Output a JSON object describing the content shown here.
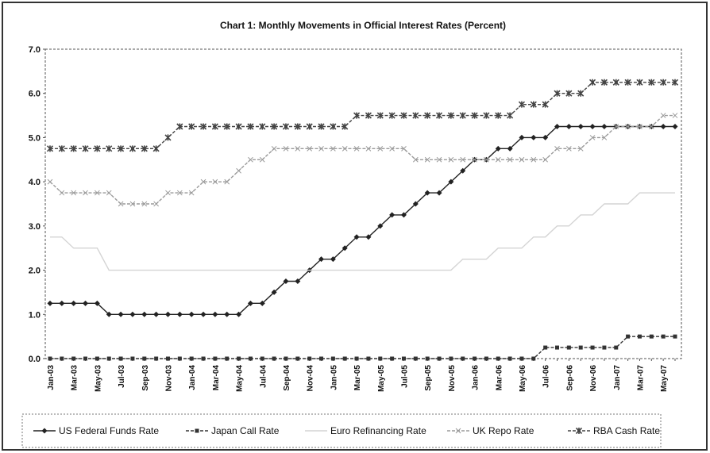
{
  "chart_data": {
    "type": "line",
    "title": "Chart 1: Monthly Movements in Official Interest Rates (Percent)",
    "categories": [
      "Jan-03",
      null,
      "Mar-03",
      null,
      "May-03",
      null,
      "Jul-03",
      null,
      "Sep-03",
      null,
      "Nov-03",
      null,
      "Jan-04",
      null,
      "Mar-04",
      null,
      "May-04",
      null,
      "Jul-04",
      null,
      "Sep-04",
      null,
      "Nov-04",
      null,
      "Jan-05",
      null,
      "Mar-05",
      null,
      "May-05",
      null,
      "Jul-05",
      null,
      "Sep-05",
      null,
      "Nov-05",
      null,
      "Jan-06",
      null,
      "Mar-06",
      null,
      "May-06",
      null,
      "Jul-06",
      null,
      "Sep-06",
      null,
      "Nov-06",
      null,
      "Jan-07",
      null,
      "Mar-07",
      null,
      "May-07",
      null
    ],
    "ylim": [
      0,
      7
    ],
    "yticks": [
      {
        "value": 0,
        "label": "0.0"
      },
      {
        "value": 1,
        "label": "1.0"
      },
      {
        "value": 2,
        "label": "2.0"
      },
      {
        "value": 3,
        "label": "3.0"
      },
      {
        "value": 4,
        "label": "4.0"
      },
      {
        "value": 5,
        "label": "5.0"
      },
      {
        "value": 6,
        "label": "6.0"
      },
      {
        "value": 7,
        "label": "7.0"
      }
    ],
    "series": [
      {
        "name": "US Federal Funds Rate",
        "color": "#222222",
        "dash": false,
        "marker": "diamond",
        "values": [
          1.25,
          1.25,
          1.25,
          1.25,
          1.25,
          1,
          1,
          1,
          1,
          1,
          1,
          1,
          1,
          1,
          1,
          1,
          1,
          1.25,
          1.25,
          1.5,
          1.75,
          1.75,
          2,
          2.25,
          2.25,
          2.5,
          2.75,
          2.75,
          3,
          3.25,
          3.25,
          3.5,
          3.75,
          3.75,
          4,
          4.25,
          4.5,
          4.5,
          4.75,
          4.75,
          5,
          5,
          5,
          5.25,
          5.25,
          5.25,
          5.25,
          5.25,
          5.25,
          5.25,
          5.25,
          5.25,
          5.25,
          5.25
        ]
      },
      {
        "name": "Japan Call Rate",
        "color": "#333333",
        "dash": true,
        "marker": "square",
        "values": [
          0,
          0,
          0,
          0,
          0,
          0,
          0,
          0,
          0,
          0,
          0,
          0,
          0,
          0,
          0,
          0,
          0,
          0,
          0,
          0,
          0,
          0,
          0,
          0,
          0,
          0,
          0,
          0,
          0,
          0,
          0,
          0,
          0,
          0,
          0,
          0,
          0,
          0,
          0,
          0,
          0,
          0,
          0.25,
          0.25,
          0.25,
          0.25,
          0.25,
          0.25,
          0.25,
          0.5,
          0.5,
          0.5,
          0.5,
          0.5
        ]
      },
      {
        "name": "Euro Refinancing Rate",
        "color": "#d4d4d4",
        "dash": false,
        "marker": "none",
        "values": [
          2.75,
          2.75,
          2.5,
          2.5,
          2.5,
          2,
          2,
          2,
          2,
          2,
          2,
          2,
          2,
          2,
          2,
          2,
          2,
          2,
          2,
          2,
          2,
          2,
          2,
          2,
          2,
          2,
          2,
          2,
          2,
          2,
          2,
          2,
          2,
          2,
          2,
          2.25,
          2.25,
          2.25,
          2.5,
          2.5,
          2.5,
          2.75,
          2.75,
          3,
          3,
          3.25,
          3.25,
          3.5,
          3.5,
          3.5,
          3.75,
          3.75,
          3.75,
          3.75
        ]
      },
      {
        "name": "UK Repo Rate",
        "color": "#9a9a9a",
        "dash": true,
        "marker": "cross",
        "values": [
          4,
          3.75,
          3.75,
          3.75,
          3.75,
          3.75,
          3.5,
          3.5,
          3.5,
          3.5,
          3.75,
          3.75,
          3.75,
          4,
          4,
          4,
          4.25,
          4.5,
          4.5,
          4.75,
          4.75,
          4.75,
          4.75,
          4.75,
          4.75,
          4.75,
          4.75,
          4.75,
          4.75,
          4.75,
          4.75,
          4.5,
          4.5,
          4.5,
          4.5,
          4.5,
          4.5,
          4.5,
          4.5,
          4.5,
          4.5,
          4.5,
          4.5,
          4.75,
          4.75,
          4.75,
          5,
          5,
          5.25,
          5.25,
          5.25,
          5.25,
          5.5,
          5.5
        ]
      },
      {
        "name": "RBA Cash Rate",
        "color": "#444444",
        "dash": true,
        "marker": "star",
        "values": [
          4.75,
          4.75,
          4.75,
          4.75,
          4.75,
          4.75,
          4.75,
          4.75,
          4.75,
          4.75,
          5,
          5.25,
          5.25,
          5.25,
          5.25,
          5.25,
          5.25,
          5.25,
          5.25,
          5.25,
          5.25,
          5.25,
          5.25,
          5.25,
          5.25,
          5.25,
          5.5,
          5.5,
          5.5,
          5.5,
          5.5,
          5.5,
          5.5,
          5.5,
          5.5,
          5.5,
          5.5,
          5.5,
          5.5,
          5.5,
          5.75,
          5.75,
          5.75,
          6,
          6,
          6,
          6.25,
          6.25,
          6.25,
          6.25,
          6.25,
          6.25,
          6.25,
          6.25
        ]
      }
    ]
  }
}
